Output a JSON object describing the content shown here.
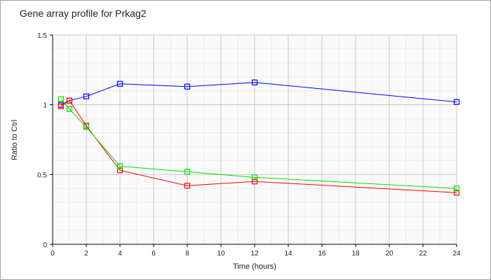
{
  "chart_data": {
    "type": "line",
    "title": "Gene array profile for Prkag2",
    "xlabel": "Time (hours)",
    "ylabel": "Ratio to Ctrl",
    "xlim": [
      0,
      24
    ],
    "ylim": [
      0,
      1.5
    ],
    "xticks": [
      0,
      2,
      4,
      6,
      8,
      10,
      12,
      14,
      16,
      18,
      20,
      22,
      24
    ],
    "yticks": [
      0,
      0.5,
      1,
      1.5
    ],
    "ytick_labels": [
      "0",
      "0.5",
      "1",
      "1.5"
    ],
    "grid": true,
    "x": [
      0.5,
      1,
      2,
      4,
      8,
      12,
      24
    ],
    "series": [
      {
        "name": "blue",
        "color": "#0000ff",
        "values": [
          1.0,
          1.03,
          1.06,
          1.15,
          1.13,
          1.16,
          1.02
        ]
      },
      {
        "name": "red",
        "color": "#ff0000",
        "values": [
          0.99,
          1.03,
          0.85,
          0.53,
          0.42,
          0.45,
          0.37
        ]
      },
      {
        "name": "green",
        "color": "#00e000",
        "values": [
          1.04,
          0.97,
          0.84,
          0.56,
          0.52,
          0.48,
          0.4
        ]
      }
    ]
  }
}
